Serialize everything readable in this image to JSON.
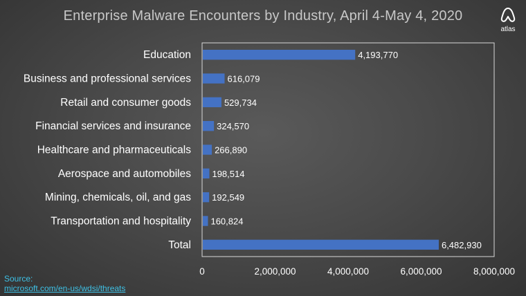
{
  "title": "Enterprise Malware Encounters by Industry, April 4-May 4, 2020",
  "logo": {
    "text": "atlas"
  },
  "source": {
    "label": "Source:",
    "link_text": "microsoft.com/en-us/wdsi/threats"
  },
  "colors": {
    "bar": "#4472c4",
    "plot_border": "#d9d9d9",
    "source": "#3ec1e6"
  },
  "chart_data": {
    "type": "bar",
    "orientation": "horizontal",
    "title": "Enterprise Malware Encounters by Industry, April 4-May 4, 2020",
    "categories": [
      "Education",
      "Business and professional services",
      "Retail and consumer goods",
      "Financial services and insurance",
      "Healthcare and pharmaceuticals",
      "Aerospace and automobiles",
      "Mining, chemicals, oil, and gas",
      "Transportation and hospitality",
      "Total"
    ],
    "values": [
      4193770,
      616079,
      529734,
      324570,
      266890,
      198514,
      192549,
      160824,
      6482930
    ],
    "data_labels": [
      "4,193,770",
      "616,079",
      "529,734",
      "324,570",
      "266,890",
      "198,514",
      "192,549",
      "160,824",
      "6,482,930"
    ],
    "xlim": [
      0,
      8000000
    ],
    "x_ticks": [
      0,
      2000000,
      4000000,
      6000000,
      8000000
    ],
    "x_tick_labels": [
      "0",
      "2,000,000",
      "4,000,000",
      "6,000,000",
      "8,000,000"
    ],
    "xlabel": "",
    "ylabel": "",
    "grid": false,
    "legend": "none"
  }
}
